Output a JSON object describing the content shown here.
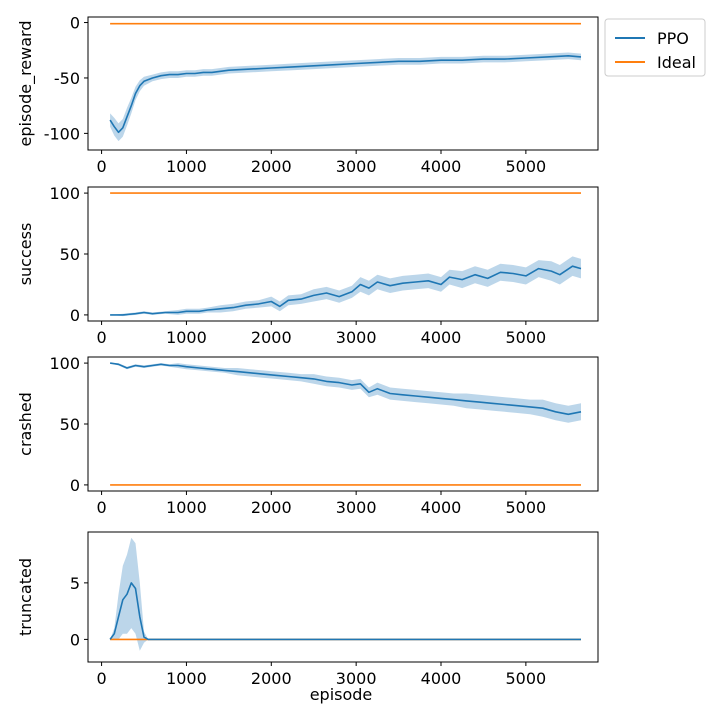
{
  "colors": {
    "ppo": "#1f77b4",
    "ideal": "#ff7f0e",
    "band": "#a6c8e3"
  },
  "legend": {
    "placement": "outside-top-right",
    "entries": [
      {
        "label": "PPO",
        "color": "#1f77b4"
      },
      {
        "label": "Ideal",
        "color": "#ff7f0e"
      }
    ]
  },
  "chart_data": [
    {
      "type": "line",
      "ylabel": "episode_reward",
      "xlim": [
        -160,
        5850
      ],
      "ylim": [
        -115,
        5
      ],
      "xticks": [
        0,
        1000,
        2000,
        3000,
        4000,
        5000
      ],
      "yticks": [
        0,
        -50,
        -100
      ],
      "series": [
        {
          "name": "PPO",
          "x": [
            100,
            150,
            200,
            250,
            300,
            350,
            400,
            450,
            500,
            600,
            700,
            800,
            900,
            1000,
            1100,
            1200,
            1300,
            1400,
            1500,
            1750,
            2000,
            2250,
            2500,
            2750,
            3000,
            3250,
            3500,
            3750,
            4000,
            4250,
            4500,
            4750,
            5000,
            5250,
            5500,
            5650
          ],
          "y": [
            -88,
            -94,
            -99,
            -95,
            -85,
            -75,
            -64,
            -57,
            -53,
            -50,
            -48,
            -47,
            -47,
            -46,
            -46,
            -45,
            -45,
            -44,
            -43,
            -42,
            -41,
            -40,
            -39,
            -38,
            -37,
            -36,
            -35,
            -35,
            -34,
            -34,
            -33,
            -33,
            -32,
            -31,
            -30,
            -31
          ],
          "band": [
            6,
            8,
            8,
            8,
            8,
            7,
            6,
            5,
            4,
            3,
            3,
            3,
            3,
            3,
            3,
            3,
            3,
            3,
            3,
            3,
            3,
            3,
            3,
            3,
            3,
            3,
            3,
            3,
            3,
            3,
            3,
            3,
            3,
            3,
            3,
            3
          ]
        },
        {
          "name": "Ideal",
          "x": [
            100,
            5650
          ],
          "y": [
            -1,
            -1
          ]
        }
      ]
    },
    {
      "type": "line",
      "ylabel": "success",
      "xlim": [
        -160,
        5850
      ],
      "ylim": [
        -5,
        105
      ],
      "xticks": [
        0,
        1000,
        2000,
        3000,
        4000,
        5000
      ],
      "yticks": [
        0,
        50,
        100
      ],
      "series": [
        {
          "name": "PPO",
          "x": [
            100,
            250,
            400,
            500,
            600,
            750,
            900,
            1000,
            1150,
            1250,
            1400,
            1550,
            1700,
            1850,
            2000,
            2100,
            2200,
            2350,
            2500,
            2650,
            2800,
            2950,
            3050,
            3150,
            3250,
            3400,
            3550,
            3700,
            3850,
            4000,
            4100,
            4250,
            4400,
            4550,
            4700,
            4850,
            5000,
            5150,
            5300,
            5400,
            5550,
            5650
          ],
          "y": [
            0,
            0,
            1,
            2,
            1,
            2,
            2,
            3,
            3,
            4,
            5,
            6,
            8,
            9,
            11,
            7,
            12,
            13,
            16,
            18,
            15,
            19,
            25,
            22,
            27,
            24,
            26,
            27,
            28,
            25,
            31,
            29,
            33,
            30,
            35,
            34,
            32,
            38,
            36,
            33,
            40,
            38
          ],
          "band": [
            0,
            1,
            1,
            1,
            1,
            1,
            2,
            2,
            2,
            2,
            3,
            3,
            3,
            3,
            4,
            4,
            4,
            4,
            5,
            5,
            5,
            5,
            6,
            6,
            6,
            6,
            6,
            6,
            6,
            6,
            6,
            7,
            7,
            7,
            7,
            7,
            7,
            7,
            8,
            8,
            8,
            8
          ]
        },
        {
          "name": "Ideal",
          "x": [
            100,
            5650
          ],
          "y": [
            100,
            100
          ]
        }
      ]
    },
    {
      "type": "line",
      "ylabel": "crashed",
      "xlim": [
        -160,
        5850
      ],
      "ylim": [
        -5,
        105
      ],
      "xticks": [
        0,
        1000,
        2000,
        3000,
        4000,
        5000
      ],
      "yticks": [
        0,
        50,
        100
      ],
      "series": [
        {
          "name": "PPO",
          "x": [
            100,
            200,
            300,
            400,
            500,
            600,
            700,
            800,
            900,
            1000,
            1150,
            1300,
            1450,
            1600,
            1750,
            1900,
            2050,
            2200,
            2350,
            2500,
            2650,
            2800,
            2950,
            3050,
            3150,
            3250,
            3400,
            3550,
            3700,
            3850,
            4000,
            4150,
            4300,
            4450,
            4600,
            4750,
            4900,
            5050,
            5200,
            5350,
            5500,
            5650
          ],
          "y": [
            100,
            99,
            96,
            98,
            97,
            98,
            99,
            98,
            98,
            97,
            96,
            95,
            94,
            93,
            92,
            91,
            90,
            89,
            88,
            87,
            85,
            84,
            82,
            83,
            76,
            79,
            75,
            74,
            73,
            72,
            71,
            70,
            69,
            68,
            67,
            66,
            65,
            64,
            63,
            60,
            58,
            60
          ],
          "band": [
            0,
            1,
            1,
            1,
            1,
            1,
            1,
            1,
            2,
            2,
            2,
            2,
            2,
            3,
            3,
            3,
            3,
            3,
            3,
            4,
            4,
            4,
            4,
            4,
            4,
            5,
            5,
            5,
            5,
            5,
            5,
            5,
            6,
            6,
            6,
            6,
            6,
            6,
            7,
            7,
            7,
            7
          ]
        },
        {
          "name": "Ideal",
          "x": [
            100,
            5650
          ],
          "y": [
            0,
            0
          ]
        }
      ]
    },
    {
      "type": "line",
      "ylabel": "truncated",
      "xlabel": "episode",
      "xlim": [
        -160,
        5850
      ],
      "ylim": [
        -2,
        9.5
      ],
      "xticks": [
        0,
        1000,
        2000,
        3000,
        4000,
        5000
      ],
      "yticks": [
        0,
        5
      ],
      "series": [
        {
          "name": "PPO",
          "x": [
            100,
            150,
            200,
            250,
            300,
            350,
            400,
            450,
            500,
            550,
            600,
            5650
          ],
          "y": [
            0,
            0.5,
            2,
            3.5,
            4,
            5,
            4.5,
            2,
            0.2,
            0,
            0,
            0
          ],
          "band": [
            0,
            0.5,
            2,
            3,
            3.5,
            4,
            4,
            3,
            0.5,
            0,
            0,
            0
          ]
        },
        {
          "name": "Ideal",
          "x": [
            100,
            5650
          ],
          "y": [
            0,
            0
          ]
        }
      ]
    }
  ]
}
